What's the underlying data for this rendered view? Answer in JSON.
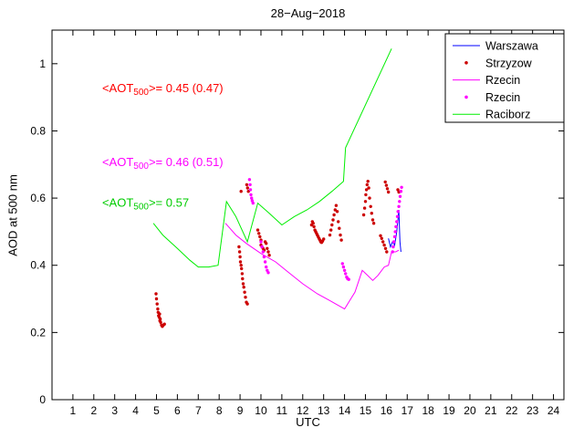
{
  "figure": {
    "title": "28−Aug−2018",
    "xlabel": "UTC",
    "ylabel": "AOD at 500 nm"
  },
  "chart_data": {
    "type": "line+scatter",
    "title": "28−Aug−2018",
    "xlabel": "UTC",
    "ylabel": "AOD at 500 nm",
    "xlim": [
      0,
      24.5
    ],
    "ylim": [
      0,
      1.1
    ],
    "xticks": [
      1,
      2,
      3,
      4,
      5,
      6,
      7,
      8,
      9,
      10,
      11,
      12,
      13,
      14,
      15,
      16,
      17,
      18,
      19,
      20,
      21,
      22,
      23,
      24
    ],
    "yticks": [
      0,
      0.2,
      0.4,
      0.6,
      0.8,
      1
    ],
    "ytick_labels": [
      "0",
      "0.2",
      "0.4",
      "0.6",
      "0.8",
      "1"
    ],
    "grid": false,
    "legend": {
      "position": "top-right",
      "entries": [
        {
          "label": "Warszawa",
          "color": "#0000ff",
          "style": "line"
        },
        {
          "label": "Strzyzow",
          "color": "#cc0000",
          "style": "marker"
        },
        {
          "label": "Rzecin",
          "color": "#ff00ff",
          "style": "line"
        },
        {
          "label": "Rzecin",
          "color": "#ff00ff",
          "style": "marker"
        },
        {
          "label": "Raciborz",
          "color": "#00ee00",
          "style": "line"
        }
      ]
    },
    "annotations": [
      {
        "pre": "<AOT",
        "sub": "500",
        "post": ">= 0.45 (0.47)",
        "color": "#ff0000",
        "x": 2.4,
        "y": 0.915
      },
      {
        "pre": "<AOT",
        "sub": "500",
        "post": ">= 0.46 (0.51)",
        "color": "#ff00ff",
        "x": 2.4,
        "y": 0.695
      },
      {
        "pre": "<AOT",
        "sub": "500",
        "post": ">= 0.57",
        "color": "#00cc00",
        "x": 2.4,
        "y": 0.575
      }
    ],
    "series": [
      {
        "name": "Raciborz",
        "type": "line",
        "color": "#00ee00",
        "points": [
          [
            4.85,
            0.525
          ],
          [
            5.3,
            0.49
          ],
          [
            6.0,
            0.45
          ],
          [
            6.6,
            0.415
          ],
          [
            7.0,
            0.395
          ],
          [
            7.5,
            0.395
          ],
          [
            7.95,
            0.4
          ],
          [
            8.35,
            0.59
          ],
          [
            8.8,
            0.545
          ],
          [
            9.35,
            0.47
          ],
          [
            9.85,
            0.585
          ],
          [
            10.4,
            0.555
          ],
          [
            11.0,
            0.52
          ],
          [
            11.6,
            0.545
          ],
          [
            12.2,
            0.565
          ],
          [
            12.8,
            0.59
          ],
          [
            13.4,
            0.62
          ],
          [
            13.95,
            0.65
          ],
          [
            14.05,
            0.75
          ],
          [
            16.25,
            1.045
          ]
        ]
      },
      {
        "name": "Rzecin",
        "type": "line",
        "color": "#ff00ff",
        "points": [
          [
            8.3,
            0.525
          ],
          [
            8.8,
            0.49
          ],
          [
            9.3,
            0.465
          ],
          [
            10.0,
            0.435
          ],
          [
            10.7,
            0.41
          ],
          [
            11.3,
            0.38
          ],
          [
            12.0,
            0.345
          ],
          [
            12.7,
            0.315
          ],
          [
            13.3,
            0.295
          ],
          [
            14.0,
            0.27
          ],
          [
            14.5,
            0.32
          ],
          [
            14.85,
            0.385
          ],
          [
            15.1,
            0.37
          ],
          [
            15.35,
            0.355
          ],
          [
            15.6,
            0.37
          ],
          [
            15.9,
            0.395
          ],
          [
            16.1,
            0.4
          ],
          [
            16.25,
            0.44
          ],
          [
            16.45,
            0.44
          ],
          [
            16.6,
            0.445
          ]
        ]
      },
      {
        "name": "Warszawa",
        "type": "line",
        "color": "#0000ff",
        "points": [
          [
            16.1,
            0.48
          ],
          [
            16.2,
            0.455
          ],
          [
            16.3,
            0.47
          ],
          [
            16.4,
            0.46
          ],
          [
            16.5,
            0.5
          ],
          [
            16.6,
            0.565
          ],
          [
            16.65,
            0.47
          ],
          [
            16.7,
            0.44
          ]
        ]
      },
      {
        "name": "Strzyzow",
        "type": "scatter",
        "color": "#cc0000",
        "points": [
          [
            4.98,
            0.315
          ],
          [
            5.0,
            0.3
          ],
          [
            5.03,
            0.285
          ],
          [
            5.06,
            0.27
          ],
          [
            5.08,
            0.26
          ],
          [
            5.1,
            0.25
          ],
          [
            5.13,
            0.245
          ],
          [
            5.15,
            0.255
          ],
          [
            5.16,
            0.235
          ],
          [
            5.18,
            0.24
          ],
          [
            5.2,
            0.23
          ],
          [
            5.24,
            0.222
          ],
          [
            5.28,
            0.218
          ],
          [
            5.33,
            0.222
          ],
          [
            5.38,
            0.225
          ],
          [
            8.95,
            0.455
          ],
          [
            8.98,
            0.44
          ],
          [
            9.0,
            0.425
          ],
          [
            9.02,
            0.41
          ],
          [
            9.05,
            0.4
          ],
          [
            9.05,
            0.62
          ],
          [
            9.07,
            0.39
          ],
          [
            9.1,
            0.375
          ],
          [
            9.12,
            0.36
          ],
          [
            9.15,
            0.345
          ],
          [
            9.18,
            0.335
          ],
          [
            9.22,
            0.32
          ],
          [
            9.26,
            0.305
          ],
          [
            9.3,
            0.29
          ],
          [
            9.35,
            0.285
          ],
          [
            9.32,
            0.64
          ],
          [
            9.36,
            0.63
          ],
          [
            9.4,
            0.62
          ],
          [
            9.85,
            0.505
          ],
          [
            9.9,
            0.495
          ],
          [
            9.95,
            0.485
          ],
          [
            10.0,
            0.475
          ],
          [
            10.0,
            0.46
          ],
          [
            10.05,
            0.455
          ],
          [
            10.1,
            0.45
          ],
          [
            10.15,
            0.445
          ],
          [
            10.2,
            0.47
          ],
          [
            10.25,
            0.465
          ],
          [
            10.3,
            0.45
          ],
          [
            10.35,
            0.44
          ],
          [
            10.4,
            0.43
          ],
          [
            12.42,
            0.52
          ],
          [
            12.46,
            0.53
          ],
          [
            12.5,
            0.525
          ],
          [
            12.54,
            0.515
          ],
          [
            12.58,
            0.505
          ],
          [
            12.62,
            0.5
          ],
          [
            12.66,
            0.495
          ],
          [
            12.7,
            0.49
          ],
          [
            12.74,
            0.485
          ],
          [
            12.78,
            0.48
          ],
          [
            12.82,
            0.475
          ],
          [
            12.86,
            0.47
          ],
          [
            12.9,
            0.468
          ],
          [
            12.95,
            0.472
          ],
          [
            13.0,
            0.478
          ],
          [
            13.3,
            0.49
          ],
          [
            13.35,
            0.505
          ],
          [
            13.4,
            0.52
          ],
          [
            13.45,
            0.535
          ],
          [
            13.5,
            0.55
          ],
          [
            13.55,
            0.565
          ],
          [
            13.6,
            0.578
          ],
          [
            13.65,
            0.56
          ],
          [
            13.7,
            0.53
          ],
          [
            13.75,
            0.51
          ],
          [
            13.8,
            0.49
          ],
          [
            13.85,
            0.475
          ],
          [
            14.92,
            0.55
          ],
          [
            14.96,
            0.57
          ],
          [
            15.0,
            0.59
          ],
          [
            15.02,
            0.61
          ],
          [
            15.05,
            0.625
          ],
          [
            15.08,
            0.64
          ],
          [
            15.12,
            0.65
          ],
          [
            15.16,
            0.63
          ],
          [
            15.2,
            0.6
          ],
          [
            15.25,
            0.575
          ],
          [
            15.3,
            0.555
          ],
          [
            15.35,
            0.535
          ],
          [
            15.4,
            0.525
          ],
          [
            15.72,
            0.488
          ],
          [
            15.78,
            0.48
          ],
          [
            15.84,
            0.47
          ],
          [
            15.9,
            0.46
          ],
          [
            15.96,
            0.45
          ],
          [
            16.02,
            0.44
          ],
          [
            15.95,
            0.648
          ],
          [
            16.0,
            0.638
          ],
          [
            16.05,
            0.628
          ],
          [
            16.1,
            0.618
          ],
          [
            16.55,
            0.625
          ],
          [
            16.6,
            0.618
          ]
        ]
      },
      {
        "name": "Rzecin",
        "type": "scatter",
        "color": "#ff00ff",
        "points": [
          [
            9.45,
            0.655
          ],
          [
            9.48,
            0.64
          ],
          [
            9.5,
            0.625
          ],
          [
            9.52,
            0.61
          ],
          [
            9.55,
            0.6
          ],
          [
            9.58,
            0.592
          ],
          [
            9.62,
            0.585
          ],
          [
            10.0,
            0.47
          ],
          [
            10.05,
            0.455
          ],
          [
            10.1,
            0.44
          ],
          [
            10.15,
            0.425
          ],
          [
            10.2,
            0.41
          ],
          [
            10.25,
            0.395
          ],
          [
            10.3,
            0.385
          ],
          [
            10.35,
            0.378
          ],
          [
            13.9,
            0.405
          ],
          [
            13.95,
            0.395
          ],
          [
            14.0,
            0.385
          ],
          [
            14.05,
            0.375
          ],
          [
            14.1,
            0.365
          ],
          [
            14.15,
            0.36
          ],
          [
            14.2,
            0.358
          ],
          [
            16.3,
            0.44
          ],
          [
            16.33,
            0.455
          ],
          [
            16.36,
            0.47
          ],
          [
            16.4,
            0.485
          ],
          [
            16.43,
            0.5
          ],
          [
            16.46,
            0.515
          ],
          [
            16.5,
            0.53
          ],
          [
            16.53,
            0.545
          ],
          [
            16.56,
            0.56
          ],
          [
            16.6,
            0.575
          ],
          [
            16.63,
            0.59
          ],
          [
            16.66,
            0.605
          ],
          [
            16.7,
            0.62
          ],
          [
            16.73,
            0.632
          ]
        ]
      }
    ]
  }
}
